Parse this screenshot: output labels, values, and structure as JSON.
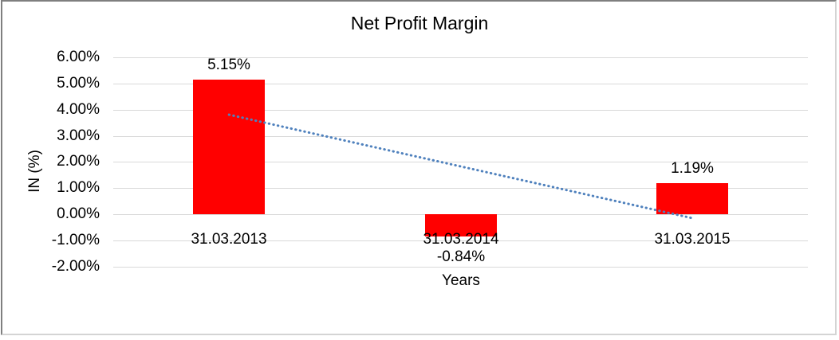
{
  "window": {
    "background": "#ffffff",
    "frame_border_dark": "#7f7f7f",
    "frame_border_light": "#d4d4d4"
  },
  "chart_data": {
    "type": "bar",
    "title": "Net Profit Margin",
    "xlabel": "Years",
    "ylabel": "IN (%)",
    "categories": [
      "31.03.2013",
      "31.03.2014",
      "31.03.2015"
    ],
    "values": [
      5.15,
      -0.84,
      1.19
    ],
    "data_labels": [
      "5.15%",
      "-0.84%",
      "1.19%"
    ],
    "bar_color": "#ff0000",
    "ylim": [
      -2,
      6
    ],
    "yticks": [
      {
        "value": 6,
        "label": "6.00%"
      },
      {
        "value": 5,
        "label": "5.00%"
      },
      {
        "value": 4,
        "label": "4.00%"
      },
      {
        "value": 3,
        "label": "3.00%"
      },
      {
        "value": 2,
        "label": "2.00%"
      },
      {
        "value": 1,
        "label": "1.00%"
      },
      {
        "value": 0,
        "label": "0.00%"
      },
      {
        "value": -1,
        "label": "-1.00%"
      },
      {
        "value": -2,
        "label": "-2.00%"
      }
    ],
    "grid": true,
    "gridline_color": "#d9d9d9",
    "legend": "none",
    "trendline": {
      "type": "linear",
      "style": "dotted",
      "color": "#4f81bd",
      "start_value_pct": 3.81,
      "end_value_pct": -0.15
    }
  }
}
